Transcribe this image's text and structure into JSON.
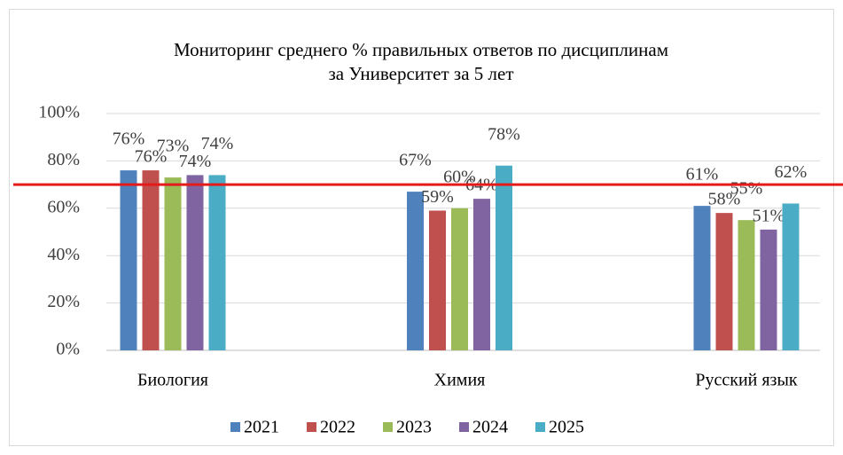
{
  "chart_data": {
    "type": "bar",
    "title": [
      "Мониторинг среднего % правильных ответов по дисциплинам",
      "за Университет за 5 лет"
    ],
    "categories": [
      "Биология",
      "Химия",
      "Русский язык"
    ],
    "series": [
      {
        "name": "2021",
        "color": "#4f81bd",
        "values": [
          76,
          67,
          61
        ],
        "value_labels": [
          "76%",
          "67%",
          "61%"
        ]
      },
      {
        "name": "2022",
        "color": "#c0504d",
        "values": [
          76,
          59,
          58
        ],
        "value_labels": [
          "76%",
          "59%",
          "58%"
        ]
      },
      {
        "name": "2023",
        "color": "#9bbb59",
        "values": [
          73,
          60,
          55
        ],
        "value_labels": [
          "73%",
          "60%",
          "55%"
        ]
      },
      {
        "name": "2024",
        "color": "#8064a2",
        "values": [
          74,
          64,
          51
        ],
        "value_labels": [
          "74%",
          "64%",
          "51%"
        ]
      },
      {
        "name": "2025",
        "color": "#4bacc6",
        "values": [
          74,
          78,
          62
        ],
        "value_labels": [
          "74%",
          "78%",
          "62%"
        ]
      }
    ],
    "ylim": [
      0,
      100
    ],
    "yticks": [
      {
        "value": 0,
        "label": "0%"
      },
      {
        "value": 20,
        "label": "20%"
      },
      {
        "value": 40,
        "label": "40%"
      },
      {
        "value": 60,
        "label": "60%"
      },
      {
        "value": 80,
        "label": "80%"
      },
      {
        "value": 100,
        "label": "100%"
      }
    ],
    "grid": true,
    "legend": "bottom",
    "threshold": 70,
    "threshold_color": "#e31b1b"
  }
}
